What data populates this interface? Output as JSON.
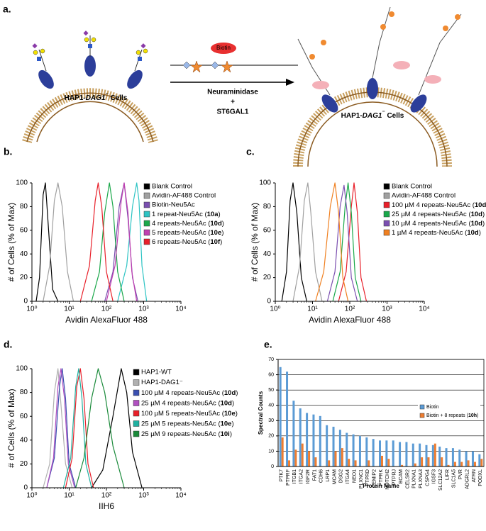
{
  "diagram": {
    "label": "a.",
    "cells_left": [
      "HAP1-",
      "DAG1",
      "⁻",
      " Cells"
    ],
    "cells_right": [
      "HAP1-",
      "DAG1",
      "⁻",
      " Cells"
    ],
    "enzyme_1": "Neuraminidase",
    "plus": "+",
    "enzyme_2": "ST6GAL1",
    "tag": "Biotin"
  },
  "chart_data": [
    {
      "label": "b.",
      "type": "line",
      "xlog": true,
      "xlabel": "Avidin AlexaFluor 488",
      "ylabel": "# of Cells (% of Max)",
      "xlim": [
        1,
        10000
      ],
      "ylim": [
        0,
        100
      ],
      "xticks": [
        {
          "value": 1,
          "label": "10⁰"
        },
        {
          "value": 10,
          "label": "10¹"
        },
        {
          "value": 100,
          "label": "10²"
        },
        {
          "value": 1000,
          "label": "10³"
        },
        {
          "value": 10000,
          "label": "10⁴"
        }
      ],
      "yticks": [
        0,
        20,
        40,
        60,
        80,
        100
      ],
      "series": [
        {
          "name": "Blank Control",
          "color": "#000000",
          "x": [
            1.3,
            1.6,
            2.0,
            2.3,
            2.8,
            3.6,
            5
          ],
          "values": [
            0,
            20,
            90,
            100,
            60,
            10,
            0
          ]
        },
        {
          "name": "Avidin-AF488 Control",
          "color": "#a0a0a0",
          "x": [
            2,
            3,
            4,
            5,
            6.5,
            9,
            13
          ],
          "values": [
            0,
            30,
            85,
            100,
            80,
            25,
            0
          ]
        },
        {
          "name": "Biotin-Neu5Ac",
          "color": "#7b4fb0",
          "x": [
            90,
            150,
            220,
            300,
            380,
            500,
            700
          ],
          "values": [
            0,
            25,
            80,
            100,
            70,
            20,
            0
          ]
        },
        {
          "name": "1 repeat-Neu5Ac (10a)",
          "color": "#2ec4c4",
          "x": [
            200,
            350,
            500,
            650,
            750,
            900,
            1200
          ],
          "values": [
            0,
            30,
            80,
            100,
            85,
            30,
            0
          ]
        },
        {
          "name": "4 repeats-Neu5Ac (10d)",
          "color": "#1aa84a",
          "x": [
            40,
            65,
            90,
            120,
            150,
            200,
            300
          ],
          "values": [
            0,
            25,
            75,
            100,
            80,
            25,
            0
          ]
        },
        {
          "name": "5 repeats-Neu5Ac (10e)",
          "color": "#c040b0",
          "x": [
            100,
            170,
            250,
            300,
            380,
            480,
            650
          ],
          "values": [
            0,
            30,
            85,
            100,
            75,
            25,
            0
          ]
        },
        {
          "name": "6 repeats-Neu5Ac (10f)",
          "color": "#e8202a",
          "x": [
            20,
            35,
            50,
            60,
            75,
            100,
            150
          ],
          "values": [
            0,
            30,
            85,
            100,
            80,
            25,
            0
          ]
        }
      ]
    },
    {
      "label": "c.",
      "type": "line",
      "xlog": true,
      "xlabel": "Avidin AlexaFluor 488",
      "ylabel": "# of Cells (% of Max)",
      "xlim": [
        1,
        10000
      ],
      "ylim": [
        0,
        100
      ],
      "xticks": [
        {
          "value": 1,
          "label": "10⁰"
        },
        {
          "value": 10,
          "label": "10¹"
        },
        {
          "value": 100,
          "label": "10²"
        },
        {
          "value": 1000,
          "label": "10³"
        },
        {
          "value": 10000,
          "label": "10⁴"
        }
      ],
      "yticks": [
        0,
        20,
        40,
        60,
        80,
        100
      ],
      "series": [
        {
          "name": "Blank Control",
          "color": "#000000",
          "x": [
            1.5,
            2,
            2.5,
            3,
            3.8,
            5,
            7
          ],
          "values": [
            0,
            25,
            85,
            100,
            75,
            20,
            0
          ]
        },
        {
          "name": "Avidin-AF488 Control",
          "color": "#a0a0a0",
          "x": [
            3,
            4.5,
            6,
            7.5,
            9,
            12,
            18
          ],
          "values": [
            0,
            30,
            85,
            100,
            75,
            25,
            0
          ]
        },
        {
          "name": "100 µM 4 repeats-Neu5Ac (10d)",
          "color": "#e8202a",
          "x": [
            50,
            80,
            110,
            130,
            160,
            200,
            280
          ],
          "values": [
            0,
            25,
            80,
            100,
            75,
            20,
            0
          ]
        },
        {
          "name": "25 µM 4 repeats-Neu5Ac (10d)",
          "color": "#1aa84a",
          "x": [
            35,
            55,
            75,
            90,
            110,
            140,
            200
          ],
          "values": [
            0,
            25,
            80,
            100,
            75,
            20,
            0
          ]
        },
        {
          "name": "10 µM 4 repeats-Neu5Ac (10d)",
          "color": "#7b4fb0",
          "x": [
            25,
            40,
            55,
            70,
            85,
            110,
            160
          ],
          "values": [
            0,
            25,
            80,
            98,
            75,
            20,
            0
          ]
        },
        {
          "name": "1 µM 4 repeats-Neu5Ac (10d)",
          "color": "#f08020",
          "x": [
            12,
            20,
            30,
            40,
            50,
            65,
            90
          ],
          "values": [
            0,
            25,
            80,
            100,
            75,
            20,
            0
          ]
        }
      ]
    },
    {
      "label": "d.",
      "type": "line",
      "xlog": true,
      "xlabel": "IIH6",
      "ylabel": "# of Cells (% of Max)",
      "xlim": [
        1,
        10000
      ],
      "ylim": [
        0,
        100
      ],
      "xticks": [
        {
          "value": 1,
          "label": "10⁰"
        },
        {
          "value": 10,
          "label": "10¹"
        },
        {
          "value": 100,
          "label": "10²"
        },
        {
          "value": 1000,
          "label": "10³"
        },
        {
          "value": 10000,
          "label": "10⁴"
        }
      ],
      "yticks": [
        0,
        20,
        40,
        60,
        80,
        100
      ],
      "series": [
        {
          "name": "HAP1-WT",
          "color": "#000000",
          "x": [
            40,
            80,
            150,
            250,
            350,
            500,
            900
          ],
          "values": [
            0,
            15,
            60,
            100,
            80,
            30,
            0
          ]
        },
        {
          "name": "HAP1-DAG1⁻",
          "color": "#b0b0b0",
          "x": [
            2,
            3,
            4,
            5,
            6,
            8,
            12
          ],
          "values": [
            0,
            20,
            80,
            100,
            70,
            20,
            0
          ]
        },
        {
          "name": "100 µM 4 repeats-Neu5Ac (10d)",
          "color": "#3a4fb0",
          "x": [
            2.5,
            4,
            5.5,
            6.5,
            8,
            10,
            15
          ],
          "values": [
            0,
            25,
            85,
            100,
            75,
            20,
            0
          ]
        },
        {
          "name": "25 µM 4 repeats-Neu5Ac (10d)",
          "color": "#b050c0",
          "x": [
            2.5,
            3.8,
            5,
            6,
            7.5,
            9.5,
            14
          ],
          "values": [
            0,
            25,
            85,
            100,
            75,
            20,
            0
          ]
        },
        {
          "name": "100 µM 5 repeats-Neu5Ac (10e)",
          "color": "#e8202a",
          "x": [
            8,
            12,
            16,
            20,
            25,
            32,
            45
          ],
          "values": [
            0,
            25,
            85,
            100,
            75,
            20,
            0
          ]
        },
        {
          "name": "25 µM 5 repeats-Neu5Ac (10e)",
          "color": "#20b0a0",
          "x": [
            7,
            11,
            15,
            18,
            22,
            28,
            40
          ],
          "values": [
            0,
            25,
            85,
            100,
            75,
            20,
            0
          ]
        },
        {
          "name": "25 µM 9 repeats-Neu5Ac (10i)",
          "color": "#1a8a3a",
          "x": [
            15,
            25,
            40,
            60,
            90,
            150,
            300
          ],
          "values": [
            0,
            25,
            75,
            100,
            80,
            35,
            0
          ]
        }
      ]
    },
    {
      "label": "e.",
      "type": "bar",
      "xlabel": "Protein Name",
      "ylabel": "Spectral Counts",
      "ylim": [
        0,
        70
      ],
      "yticks": [
        0,
        10,
        20,
        30,
        40,
        50,
        60,
        70
      ],
      "grid": true,
      "categories": [
        "PTK7",
        "PTPRF",
        "ITGB1",
        "ITGA2",
        "IGF2R",
        "FAT1",
        "CDH6",
        "LRP1",
        "MCAM",
        "DSG2",
        "ITGA4",
        "NEO1",
        "PLXNC1",
        "PTPRD",
        "CEMIP2",
        "PTPRK",
        "NOTCH2",
        "PTPRJ",
        "BCAM",
        "CELSR2",
        "PLXNA1",
        "PLXNA3",
        "CSPG4",
        "IGSF3",
        "SLC12A2",
        "LIFR",
        "SLC1A5",
        "PVR",
        "ADGRL2",
        "ATRN",
        "PODXL"
      ],
      "series": [
        {
          "name": "Biotin",
          "color": "#5b9bd5",
          "values": [
            65,
            62,
            43,
            38,
            35,
            34,
            33,
            27,
            26,
            24,
            22,
            21,
            20,
            19,
            18,
            17,
            17,
            17,
            16,
            16,
            15,
            15,
            14,
            14,
            13,
            12,
            12,
            11,
            10,
            10,
            8
          ]
        },
        {
          "name": "Biotin + 8 repeats (10h)",
          "color": "#ed7d31",
          "values": [
            19,
            4,
            11,
            15,
            10,
            6,
            0,
            4,
            10,
            12,
            5,
            4,
            0,
            4,
            0,
            7,
            5,
            0,
            1,
            0,
            2,
            6,
            6,
            15,
            6,
            1,
            3,
            3,
            4,
            3,
            5
          ]
        }
      ]
    }
  ]
}
